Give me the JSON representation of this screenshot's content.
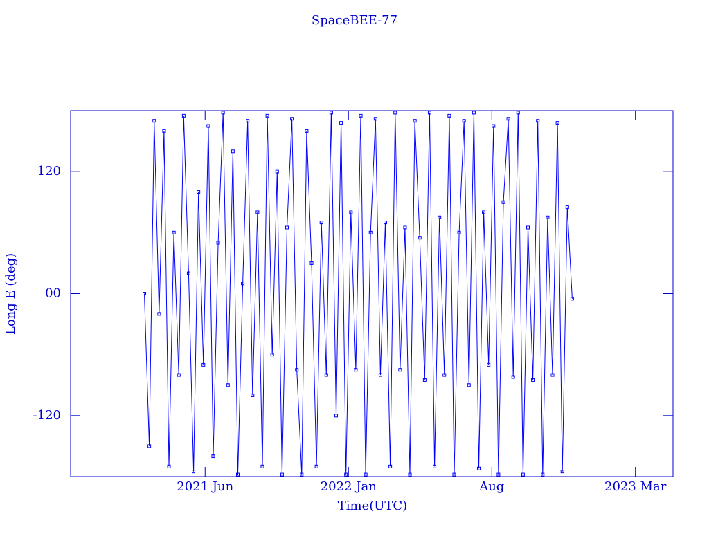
{
  "chart_data": {
    "type": "line",
    "title": "SpaceBEE-77",
    "xlabel": "Time(UTC)",
    "ylabel": "Long E (deg)",
    "color": "#0000ff",
    "xlim": [
      2020.87,
      2023.32
    ],
    "ylim": [
      -180,
      180
    ],
    "xticks": [
      {
        "value": 2021.417,
        "label": "2021 Jun"
      },
      {
        "value": 2022.0,
        "label": "2022 Jan"
      },
      {
        "value": 2022.583,
        "label": "Aug"
      },
      {
        "value": 2023.167,
        "label": "2023 Mar"
      }
    ],
    "yticks": [
      -120,
      {
        "value": 0,
        "label": "00"
      },
      120
    ],
    "x": [
      2021.17,
      2021.19,
      2021.21,
      2021.23,
      2021.25,
      2021.27,
      2021.29,
      2021.31,
      2021.33,
      2021.35,
      2021.37,
      2021.39,
      2021.41,
      2021.43,
      2021.45,
      2021.47,
      2021.49,
      2021.51,
      2021.53,
      2021.55,
      2021.57,
      2021.59,
      2021.61,
      2021.63,
      2021.65,
      2021.67,
      2021.69,
      2021.71,
      2021.73,
      2021.75,
      2021.77,
      2021.79,
      2021.81,
      2021.83,
      2021.85,
      2021.87,
      2021.89,
      2021.91,
      2021.93,
      2021.95,
      2021.97,
      2021.99,
      2022.01,
      2022.03,
      2022.05,
      2022.07,
      2022.09,
      2022.11,
      2022.13,
      2022.15,
      2022.17,
      2022.19,
      2022.21,
      2022.23,
      2022.25,
      2022.27,
      2022.29,
      2022.31,
      2022.33,
      2022.35,
      2022.37,
      2022.39,
      2022.41,
      2022.43,
      2022.45,
      2022.47,
      2022.49,
      2022.51,
      2022.53,
      2022.55,
      2022.57,
      2022.59,
      2022.61,
      2022.63,
      2022.65,
      2022.67,
      2022.69,
      2022.71,
      2022.73,
      2022.75,
      2022.77,
      2022.79,
      2022.81,
      2022.83,
      2022.85,
      2022.87,
      2022.89,
      2022.91
    ],
    "values": [
      0,
      -150,
      170,
      -20,
      160,
      -170,
      60,
      -80,
      175,
      20,
      -175,
      100,
      -70,
      165,
      -160,
      50,
      178,
      -90,
      140,
      -178,
      10,
      170,
      -100,
      80,
      -170,
      175,
      -60,
      120,
      -178,
      65,
      172,
      -75,
      -178,
      160,
      30,
      -170,
      70,
      -80,
      178,
      -120,
      168,
      -178,
      80,
      -75,
      175,
      -178,
      60,
      172,
      -80,
      70,
      -170,
      178,
      -75,
      65,
      -178,
      170,
      55,
      -85,
      178,
      -170,
      75,
      -80,
      175,
      -178,
      60,
      170,
      -90,
      178,
      -172,
      80,
      -70,
      165,
      -178,
      90,
      172,
      -82,
      178,
      -178,
      65,
      -85,
      170,
      -178,
      75,
      -80,
      168,
      -175,
      85,
      -5
    ]
  }
}
